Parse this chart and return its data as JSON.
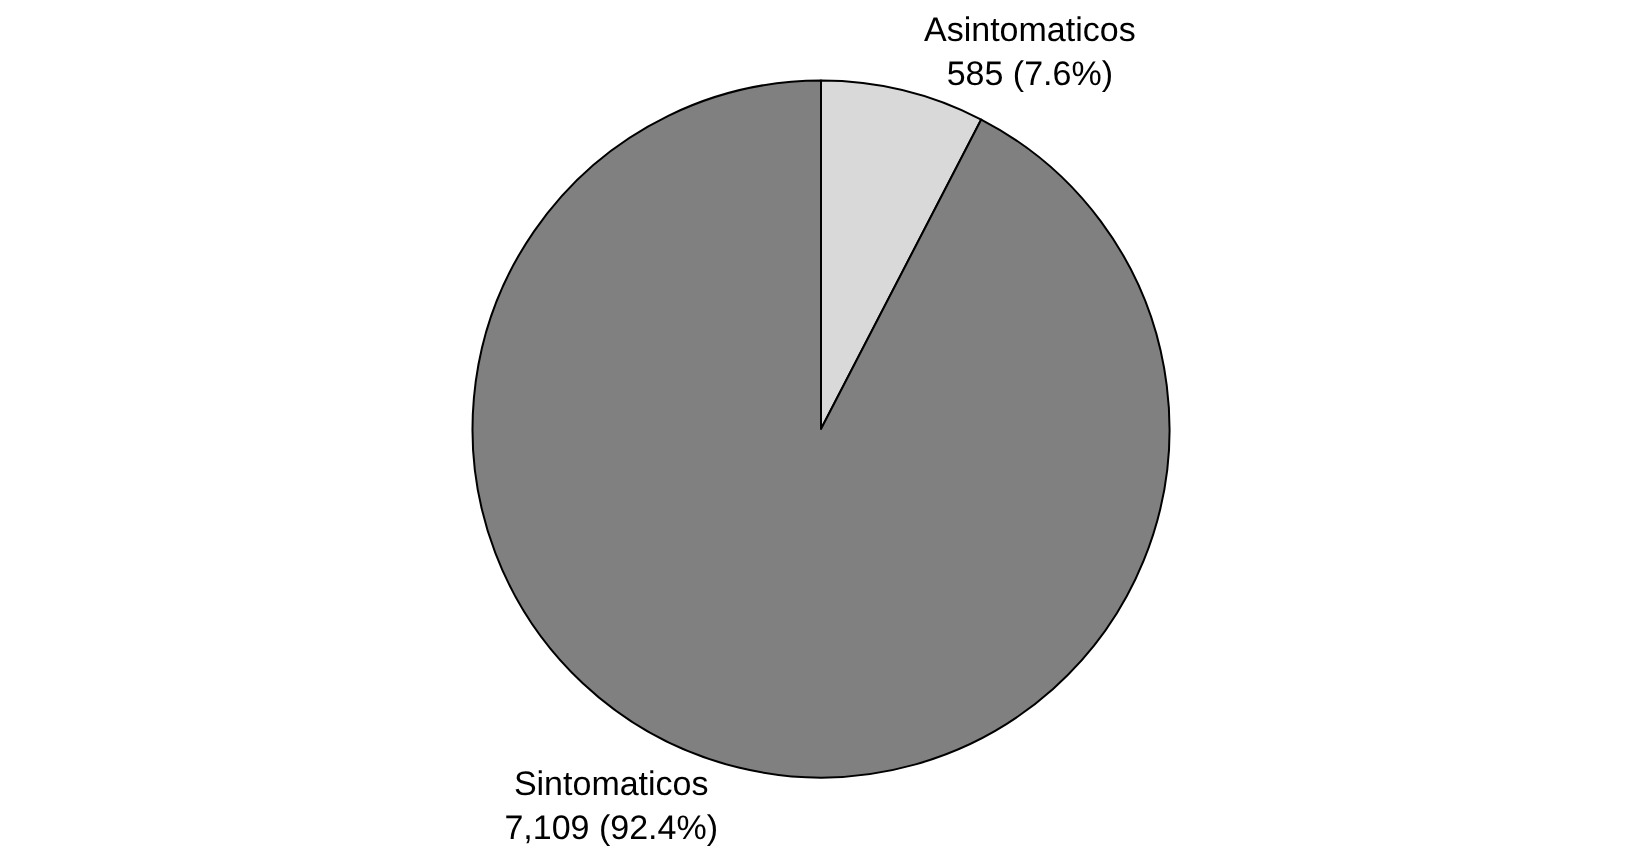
{
  "chart_data": {
    "type": "pie",
    "categories": [
      "Asintomaticos",
      "Sintomaticos"
    ],
    "values": [
      585,
      7109
    ],
    "value_labels": [
      "585 (7.6%)",
      "7,109 (92.4%)"
    ],
    "colors": [
      "#d9d9d9",
      "#808080"
    ],
    "legend": false
  }
}
